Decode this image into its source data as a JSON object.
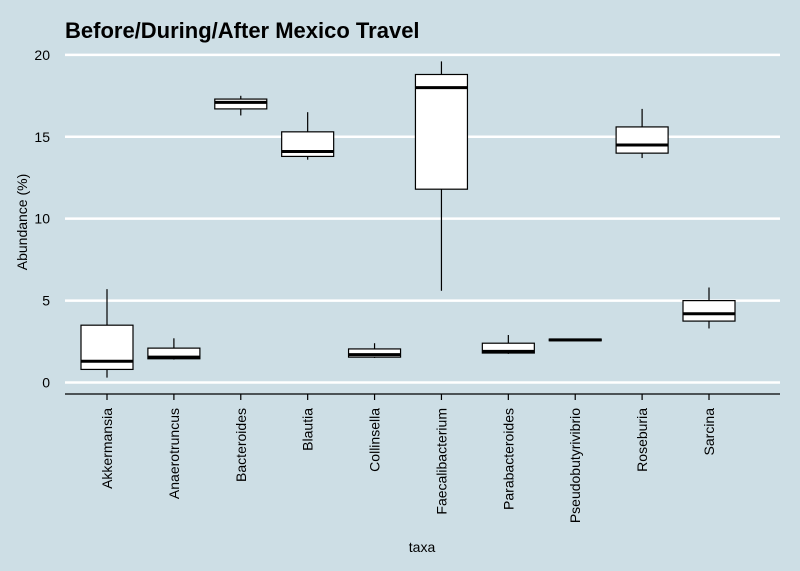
{
  "chart_data": {
    "type": "boxplot",
    "title": "Before/During/After Mexico Travel",
    "xlabel": "taxa",
    "ylabel": "Abundance (%)",
    "ylim": [
      -0.7,
      20.6
    ],
    "yticks": [
      0,
      5,
      10,
      15,
      20
    ],
    "grid": true,
    "categories": [
      "Akkermansia",
      "Anaerotruncus",
      "Bacteroides",
      "Blautia",
      "Collinsella",
      "Faecalibacterium",
      "Parabacteroides",
      "Pseudobutyrivibrio",
      "Roseburia",
      "Sarcina"
    ],
    "series": [
      {
        "min": 0.3,
        "q1": 0.8,
        "median": 1.3,
        "q3": 3.5,
        "max": 5.7
      },
      {
        "min": 1.4,
        "q1": 1.45,
        "median": 1.55,
        "q3": 2.1,
        "max": 2.7
      },
      {
        "min": 16.3,
        "q1": 16.7,
        "median": 17.1,
        "q3": 17.3,
        "max": 17.5
      },
      {
        "min": 13.6,
        "q1": 13.8,
        "median": 14.1,
        "q3": 15.3,
        "max": 16.5
      },
      {
        "min": 1.5,
        "q1": 1.55,
        "median": 1.7,
        "q3": 2.05,
        "max": 2.4
      },
      {
        "min": 5.6,
        "q1": 11.8,
        "median": 18.0,
        "q3": 18.8,
        "max": 19.6
      },
      {
        "min": 1.75,
        "q1": 1.8,
        "median": 1.9,
        "q3": 2.4,
        "max": 2.9
      },
      {
        "min": 2.55,
        "q1": 2.55,
        "median": 2.6,
        "q3": 2.65,
        "max": 2.65
      },
      {
        "min": 13.7,
        "q1": 14.0,
        "median": 14.5,
        "q3": 15.6,
        "max": 16.7
      },
      {
        "min": 3.3,
        "q1": 3.75,
        "median": 4.2,
        "q3": 5.0,
        "max": 5.8
      }
    ]
  }
}
